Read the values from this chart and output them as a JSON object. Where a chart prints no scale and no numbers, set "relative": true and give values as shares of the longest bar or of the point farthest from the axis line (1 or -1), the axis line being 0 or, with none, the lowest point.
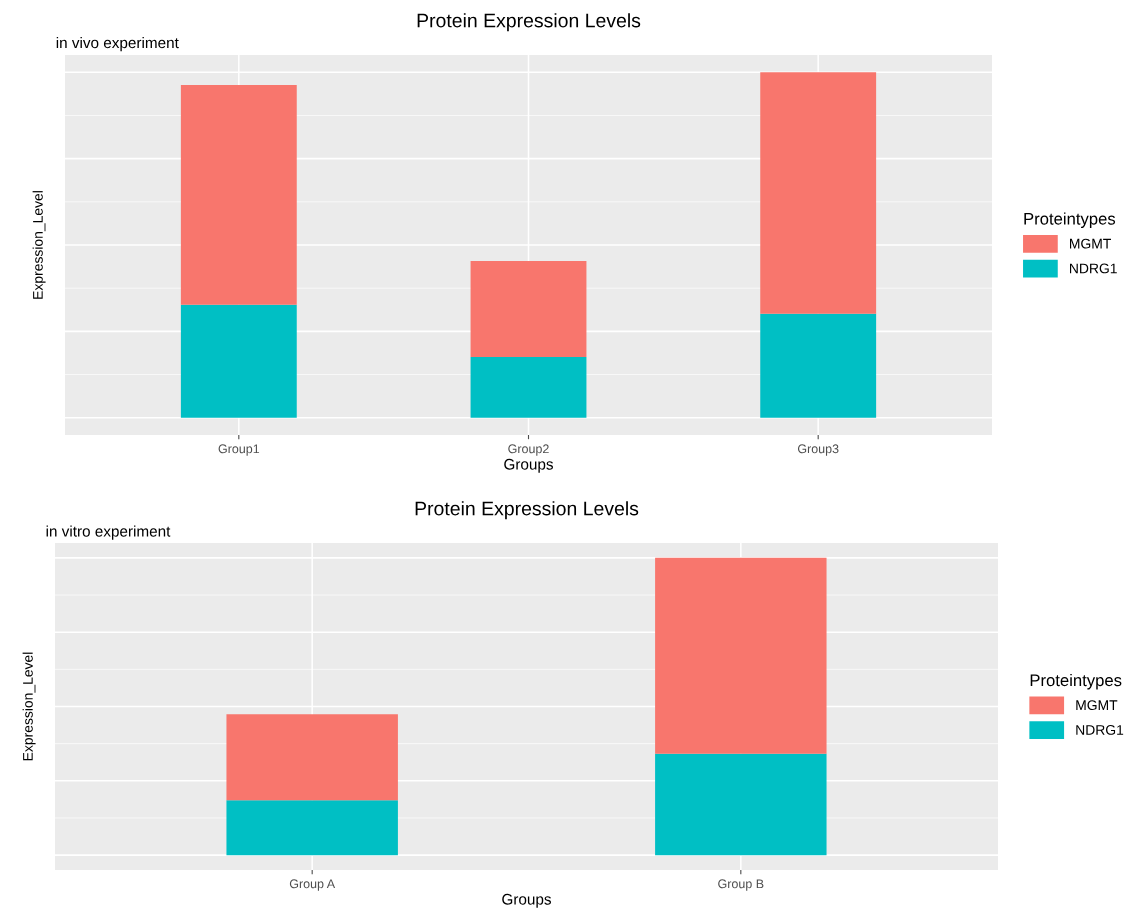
{
  "chart_data": [
    {
      "type": "bar",
      "title": "Protein Expression Levels",
      "subtitle": "in vivo experiment",
      "xlabel": "Groups",
      "ylabel": "Expression_Level",
      "legend_title": "Proteintypes",
      "categories": [
        "Group1",
        "Group2",
        "Group3"
      ],
      "stacked": true,
      "relative": true,
      "grid": true,
      "legend": "right",
      "series": [
        {
          "name": "NDRG1",
          "color": "#00bfc4",
          "values": [
            0.327,
            0.176,
            0.301
          ]
        },
        {
          "name": "MGMT",
          "color": "#f8766d",
          "values": [
            0.636,
            0.278,
            0.699
          ]
        }
      ]
    },
    {
      "type": "bar",
      "title": "Protein Expression Levels",
      "subtitle": "in vitro experiment",
      "xlabel": "Groups",
      "ylabel": "Expression_Level",
      "legend_title": "Proteintypes",
      "categories": [
        "Group A",
        "Group B"
      ],
      "stacked": true,
      "relative": true,
      "grid": true,
      "legend": "right",
      "series": [
        {
          "name": "NDRG1",
          "color": "#00bfc4",
          "values": [
            0.185,
            0.341
          ]
        },
        {
          "name": "MGMT",
          "color": "#f8766d",
          "values": [
            0.289,
            0.659
          ]
        }
      ]
    }
  ]
}
